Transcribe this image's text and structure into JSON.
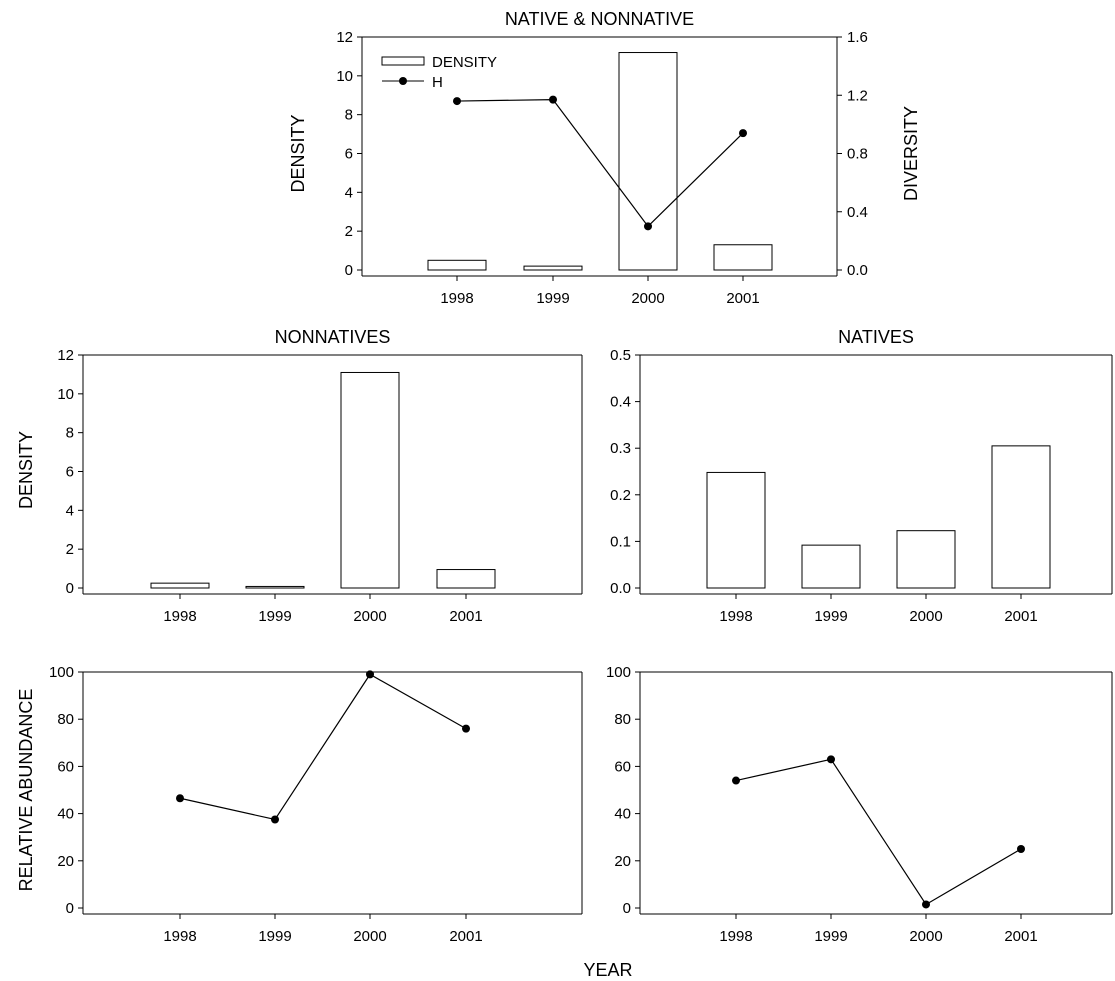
{
  "figure": {
    "shared_xlabel": "YEAR",
    "shared_density_ylabel": "DENSITY",
    "shared_abundance_ylabel": "RELATIVE ABUNDANCE"
  },
  "chart_data": [
    {
      "id": "native-nonnative",
      "type": "bar",
      "title": "NATIVE & NONNATIVE",
      "categories": [
        "1998",
        "1999",
        "2000",
        "2001"
      ],
      "series": [
        {
          "name": "DENSITY",
          "type": "bar",
          "axis": "left",
          "values": [
            0.5,
            0.2,
            11.2,
            1.3
          ]
        },
        {
          "name": "H",
          "type": "line",
          "axis": "right",
          "values": [
            1.16,
            1.17,
            0.3,
            0.94
          ]
        }
      ],
      "ylabel": "DENSITY",
      "ylim": [
        0,
        12
      ],
      "yticks": [
        0,
        2,
        4,
        6,
        8,
        10,
        12
      ],
      "y2label": "DIVERSITY",
      "y2lim": [
        0,
        1.6
      ],
      "y2ticks": [
        "0.0",
        "0.4",
        "0.8",
        "1.2",
        "1.6"
      ],
      "legend": "top-left",
      "grid": false
    },
    {
      "id": "nonnatives",
      "type": "bar",
      "title": "NONNATIVES",
      "categories": [
        "1998",
        "1999",
        "2000",
        "2001"
      ],
      "values": [
        0.25,
        0.08,
        11.1,
        0.95
      ],
      "ylabel": "DENSITY",
      "ylim": [
        0,
        12
      ],
      "yticks": [
        0,
        2,
        4,
        6,
        8,
        10,
        12
      ],
      "grid": false
    },
    {
      "id": "natives",
      "type": "bar",
      "title": "NATIVES",
      "categories": [
        "1998",
        "1999",
        "2000",
        "2001"
      ],
      "values": [
        0.248,
        0.092,
        0.123,
        0.305
      ],
      "ylim": [
        0,
        0.5
      ],
      "yticks": [
        "0.0",
        "0.1",
        "0.2",
        "0.3",
        "0.4",
        "0.5"
      ],
      "grid": false
    },
    {
      "id": "nonnatives-abundance",
      "type": "line",
      "categories": [
        "1998",
        "1999",
        "2000",
        "2001"
      ],
      "values": [
        46.5,
        37.5,
        99,
        76
      ],
      "ylabel": "RELATIVE ABUNDANCE",
      "ylim": [
        0,
        100
      ],
      "yticks": [
        0,
        20,
        40,
        60,
        80,
        100
      ],
      "grid": false
    },
    {
      "id": "natives-abundance",
      "type": "line",
      "categories": [
        "1998",
        "1999",
        "2000",
        "2001"
      ],
      "values": [
        54,
        63,
        1.5,
        25
      ],
      "ylim": [
        0,
        100
      ],
      "yticks": [
        0,
        20,
        40,
        60,
        80,
        100
      ],
      "xlabel": "YEAR",
      "grid": false
    }
  ]
}
